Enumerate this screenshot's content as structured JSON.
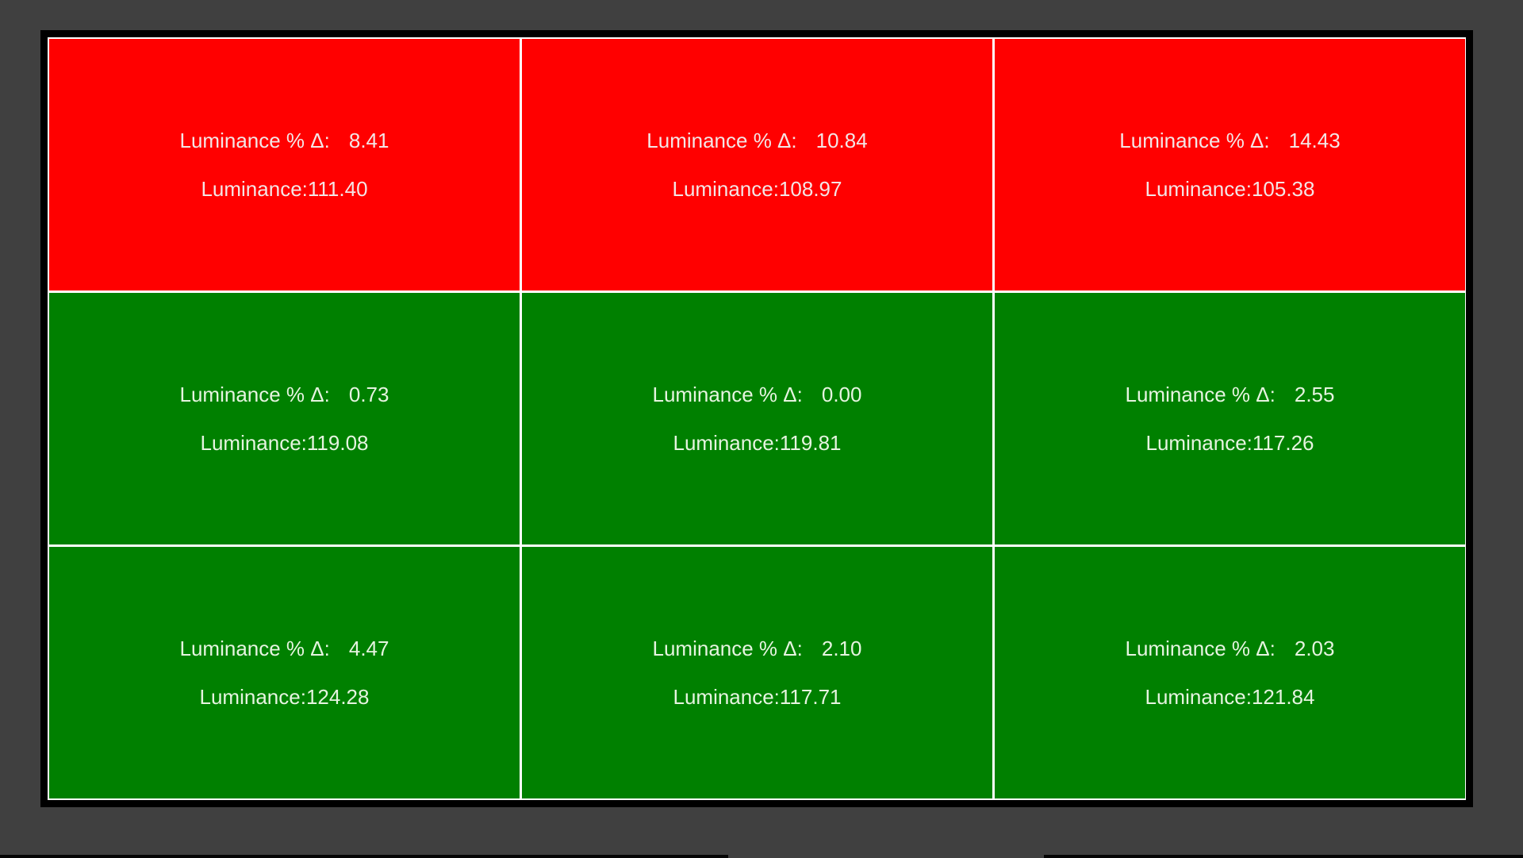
{
  "colors": {
    "background": "#404040",
    "frame": "#000000",
    "grid_line": "#ffffff",
    "fail": "#ff0000",
    "pass": "#008000"
  },
  "labels": {
    "delta_label": "Luminance % Δ:",
    "luminance_label": "Luminance:"
  },
  "cells": [
    {
      "status": "fail",
      "delta": "8.41",
      "luminance": "111.40"
    },
    {
      "status": "fail",
      "delta": "10.84",
      "luminance": "108.97"
    },
    {
      "status": "fail",
      "delta": "14.43",
      "luminance": "105.38"
    },
    {
      "status": "pass",
      "delta": "0.73",
      "luminance": "119.08"
    },
    {
      "status": "pass",
      "delta": "0.00",
      "luminance": "119.81"
    },
    {
      "status": "pass",
      "delta": "2.55",
      "luminance": "117.26"
    },
    {
      "status": "pass",
      "delta": "4.47",
      "luminance": "124.28"
    },
    {
      "status": "pass",
      "delta": "2.10",
      "luminance": "117.71"
    },
    {
      "status": "pass",
      "delta": "2.03",
      "luminance": "121.84"
    }
  ]
}
